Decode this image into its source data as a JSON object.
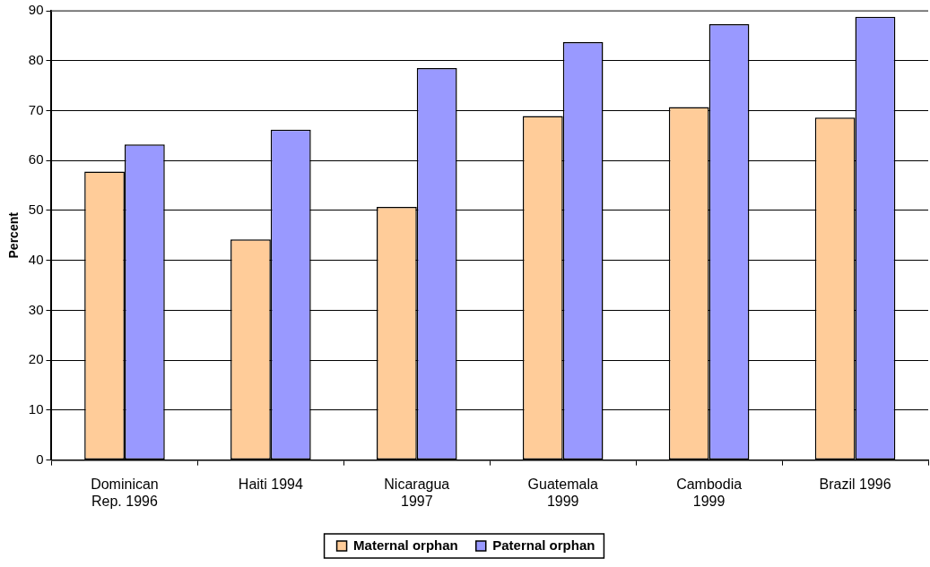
{
  "chart_data": {
    "type": "bar",
    "ylabel": "Percent",
    "categories": [
      "Dominican Rep. 1996",
      "Haiti 1994",
      "Nicaragua 1997",
      "Guatemala 1999",
      "Cambodia 1999",
      "Brazil 1996"
    ],
    "series": [
      {
        "name": "Maternal orphan",
        "color": "#ffcc99",
        "values": [
          57.8,
          44.2,
          50.7,
          68.9,
          70.7,
          68.6
        ]
      },
      {
        "name": "Paternal orphan",
        "color": "#9999ff",
        "values": [
          63.2,
          66.2,
          78.5,
          83.7,
          87.3,
          88.8
        ]
      }
    ],
    "ylim": [
      0,
      90
    ],
    "yticks": [
      0,
      10,
      20,
      30,
      40,
      50,
      60,
      70,
      80,
      90
    ],
    "grid": "y",
    "legend": "bottom"
  }
}
